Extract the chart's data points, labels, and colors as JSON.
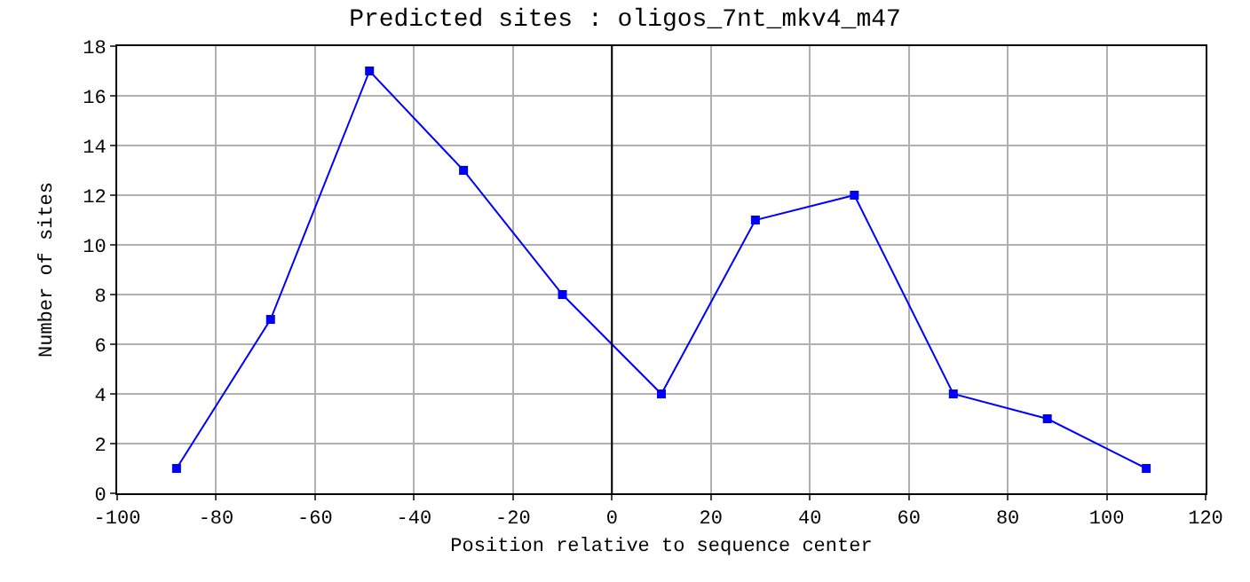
{
  "chart_data": {
    "type": "line",
    "title": "Predicted sites : oligos_7nt_mkv4_m47",
    "xlabel": "Position relative to sequence center",
    "ylabel": "Number of sites",
    "x": [
      -88,
      -69,
      -49,
      -30,
      -10,
      10,
      29,
      49,
      69,
      88,
      108
    ],
    "series": [
      {
        "color": "#0000ff",
        "values": [
          1,
          7,
          17,
          13,
          8,
          4,
          11,
          12,
          4,
          3,
          1
        ]
      }
    ],
    "xlim": [
      -100,
      120
    ],
    "xticks": [
      -100,
      -80,
      -60,
      -40,
      -20,
      0,
      20,
      40,
      60,
      80,
      100,
      120
    ],
    "ylim": [
      0,
      18
    ],
    "yticks": [
      0,
      2,
      4,
      6,
      8,
      10,
      12,
      14,
      16,
      18
    ],
    "ref_lines": [
      {
        "axis": "x",
        "value": 0,
        "color": "#000000"
      }
    ],
    "grid": true,
    "marker": "square",
    "line_style": "solid"
  }
}
